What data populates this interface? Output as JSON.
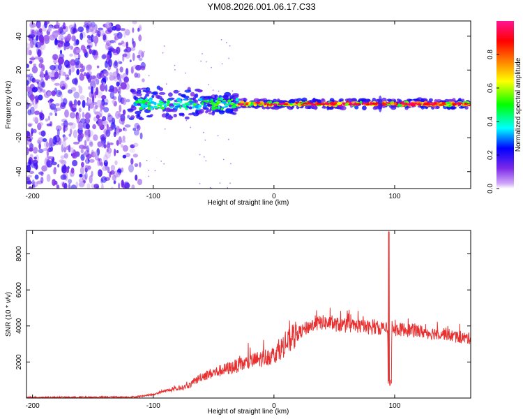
{
  "title": "YM08.2026.001.06.17.C33",
  "chart_data": [
    {
      "type": "heatmap",
      "name": "spectrogram",
      "xlabel": "Height of straight line (km)",
      "ylabel": "Frequency (Hz)",
      "xlim": [
        -205,
        163
      ],
      "ylim": [
        -50,
        49
      ],
      "xticks": [
        -200,
        -100,
        0,
        100
      ],
      "yticks": [
        -40,
        -20,
        0,
        20,
        40
      ],
      "colorbar": {
        "label": "Normalized spectral amplitude",
        "range": [
          0,
          1
        ],
        "ticks": [
          "0.0",
          "0.2",
          "0.4",
          "0.6",
          "0.8"
        ],
        "tick_values": [
          0.0,
          0.2,
          0.4,
          0.6,
          0.8
        ],
        "colors": [
          "#ffffff",
          "#7d2ae8",
          "#0000ff",
          "#00ffff",
          "#00ff00",
          "#ffff00",
          "#ff7f00",
          "#ff0000",
          "#ff00ff"
        ]
      },
      "regions": [
        {
          "name": "noise-field",
          "x_range": [
            -205,
            -108
          ],
          "y_range": [
            -50,
            49
          ],
          "amplitude": 0.15
        },
        {
          "name": "signal-band",
          "x_range": [
            -120,
            163
          ],
          "center_freq": 0,
          "amplitude": 0.85
        }
      ]
    },
    {
      "type": "line",
      "name": "snr",
      "xlabel": "Height of straight line (km)",
      "ylabel": "SNR (10 * v/v)",
      "xlim": [
        -205,
        163
      ],
      "ylim": [
        0,
        9300
      ],
      "xticks": [
        -200,
        -100,
        0,
        100
      ],
      "yticks": [
        2000,
        4000,
        6000,
        8000
      ],
      "color": "#e83030",
      "series": [
        {
          "name": "SNR",
          "x": [
            -205,
            -190,
            -175,
            -160,
            -145,
            -130,
            -115,
            -100,
            -90,
            -80,
            -70,
            -60,
            -50,
            -40,
            -30,
            -20,
            -10,
            0,
            10,
            20,
            30,
            40,
            50,
            60,
            70,
            80,
            90,
            94,
            96,
            98,
            100,
            110,
            120,
            130,
            140,
            150,
            163
          ],
          "y": [
            40,
            40,
            45,
            45,
            50,
            55,
            60,
            200,
            400,
            500,
            700,
            1200,
            1400,
            1600,
            1800,
            2000,
            2200,
            2400,
            3000,
            3600,
            4000,
            4200,
            4100,
            4000,
            4000,
            3900,
            3900,
            3800,
            800,
            3900,
            3800,
            3800,
            3700,
            3600,
            3600,
            3400,
            3300
          ]
        }
      ]
    }
  ]
}
